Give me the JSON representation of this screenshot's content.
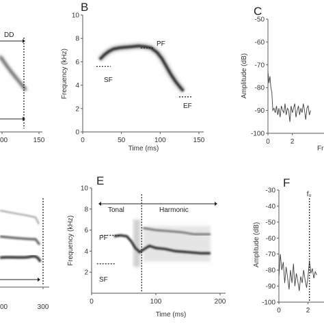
{
  "panels": {
    "A": {
      "label": "",
      "annotations": {
        "dd": "DD"
      },
      "x_ticks": [
        "00",
        "150"
      ]
    },
    "B": {
      "label": "B",
      "xlabel": "Time (ms)",
      "ylabel": "Frequency (kHz)",
      "annotations": {
        "pf": "PF",
        "sf": "SF",
        "ef": "EF"
      }
    },
    "C": {
      "label": "C",
      "ylabel": "Amplitude (dB)",
      "xlabel_fragment": "Fr"
    },
    "D": {
      "label": "",
      "x_ticks": [
        "00",
        "300"
      ]
    },
    "E": {
      "label": "E",
      "xlabel": "Time (ms)",
      "ylabel": "Frequency (kHz)",
      "annotations": {
        "tonal": "Tonal",
        "harmonic": "Harmonic",
        "pf": "PF",
        "sf": "SF"
      }
    },
    "F": {
      "label": "F",
      "ylabel": "Amplitude (dB)",
      "marker": "f₀"
    }
  },
  "chart_data": [
    {
      "panel": "B",
      "type": "spectrogram",
      "xlabel": "Time (ms)",
      "ylabel": "Frequency (kHz)",
      "xlim": [
        0,
        150
      ],
      "ylim": [
        0,
        10
      ],
      "x_ticks": [
        0,
        50,
        100,
        150
      ],
      "y_ticks": [
        0,
        2,
        4,
        6,
        8,
        10
      ],
      "contour": {
        "x": [
          22,
          28,
          34,
          40,
          48,
          56,
          64,
          72,
          80,
          88,
          96,
          102,
          108,
          114,
          120,
          126,
          130
        ],
        "y": [
          6.2,
          6.6,
          6.9,
          7.1,
          7.2,
          7.25,
          7.3,
          7.35,
          7.3,
          7.2,
          6.8,
          6.3,
          5.6,
          4.9,
          4.3,
          3.8,
          3.5
        ]
      },
      "markers": {
        "pf": [
          82,
          7.3
        ],
        "sf": [
          22,
          5.6
        ],
        "ef": [
          128,
          3.0
        ]
      }
    },
    {
      "panel": "C",
      "type": "line",
      "ylabel": "Amplitude (dB)",
      "xlabel": "",
      "ylim": [
        -100,
        -50
      ],
      "y_ticks": [
        -50,
        -60,
        -70,
        -80,
        -90,
        -100
      ],
      "x_ticks": [
        0,
        2
      ],
      "series": [
        {
          "x": [
            0.0,
            0.08,
            0.16,
            0.24,
            0.32,
            0.4,
            0.5,
            0.6,
            0.7,
            0.8,
            0.9,
            1.0,
            1.1,
            1.2,
            1.3,
            1.4,
            1.5,
            1.6,
            1.7,
            1.8,
            1.9,
            2.0,
            2.1,
            2.2,
            2.3,
            2.4,
            2.5,
            2.6,
            2.7,
            2.8,
            2.9,
            3.0,
            3.1,
            3.2,
            3.3,
            3.4,
            3.5
          ],
          "y": [
            -73,
            -78,
            -75,
            -80,
            -82,
            -90,
            -89,
            -91,
            -88,
            -92,
            -89,
            -93,
            -88,
            -90,
            -91,
            -87,
            -92,
            -89,
            -90,
            -95,
            -88,
            -91,
            -89,
            -87,
            -93,
            -90,
            -88,
            -92,
            -89,
            -91,
            -87,
            -90,
            -94,
            -89,
            -88,
            -92,
            -90
          ]
        }
      ]
    },
    {
      "panel": "E",
      "type": "spectrogram",
      "xlabel": "Time (ms)",
      "ylabel": "Frequency (kHz)",
      "xlim": [
        0,
        200
      ],
      "ylim": [
        0,
        10
      ],
      "x_ticks": [
        0,
        100,
        200
      ],
      "y_ticks": [
        2,
        4,
        6,
        8,
        10
      ],
      "fundamental": {
        "x": [
          35,
          45,
          55,
          62,
          68,
          75,
          82,
          90,
          100,
          115,
          130,
          150,
          170,
          185
        ],
        "y": [
          5.4,
          5.5,
          5.4,
          4.9,
          4.3,
          3.9,
          4.2,
          4.5,
          4.3,
          4.2,
          4.0,
          3.9,
          3.8,
          3.8
        ]
      },
      "harmonic": {
        "x": [
          80,
          100,
          120,
          140,
          160,
          185
        ],
        "y": [
          6.2,
          6.0,
          5.9,
          5.8,
          5.6,
          5.6
        ]
      },
      "markers": {
        "pf": [
          45,
          5.5
        ],
        "sf": [
          38,
          2.8
        ],
        "divider_x": 78
      }
    },
    {
      "panel": "F",
      "type": "line",
      "ylabel": "Amplitude (dB)",
      "ylim": [
        -100,
        -30
      ],
      "y_ticks": [
        -30,
        -40,
        -50,
        -60,
        -70,
        -80,
        -90,
        -100
      ],
      "x_ticks": [
        0,
        2
      ],
      "f0_marker_x": 2.1,
      "series": [
        {
          "x": [
            0.0,
            0.1,
            0.2,
            0.3,
            0.4,
            0.5,
            0.6,
            0.7,
            0.8,
            0.9,
            1.0,
            1.1,
            1.2,
            1.3,
            1.4,
            1.5,
            1.6,
            1.7,
            1.8,
            1.9,
            2.0,
            2.1,
            2.2,
            2.3,
            2.4,
            2.5,
            2.6
          ],
          "y": [
            -84,
            -70,
            -80,
            -75,
            -88,
            -78,
            -85,
            -92,
            -80,
            -88,
            -76,
            -90,
            -82,
            -87,
            -93,
            -84,
            -88,
            -80,
            -86,
            -91,
            -84,
            -74,
            -82,
            -79,
            -85,
            -81,
            -83
          ]
        }
      ]
    }
  ]
}
